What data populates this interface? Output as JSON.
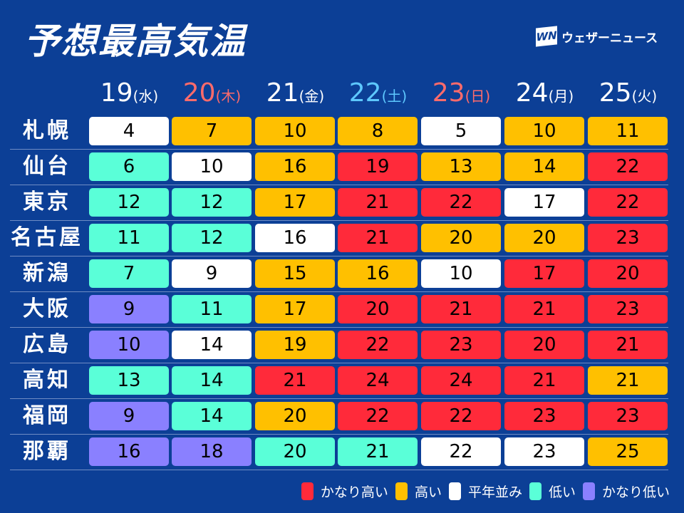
{
  "title": "予想最高気温",
  "logo": {
    "mark": "WN",
    "text": "ウェザーニュース"
  },
  "colors": {
    "very_high": "#ff2a3a",
    "high": "#ffc000",
    "normal": "#ffffff",
    "low": "#5affd8",
    "very_low": "#8a80ff",
    "background": "#0c3f96"
  },
  "days": [
    {
      "date": "19",
      "weekday": "(水)",
      "color": "#ffffff"
    },
    {
      "date": "20",
      "weekday": "(木)",
      "color": "#ff6b6b"
    },
    {
      "date": "21",
      "weekday": "(金)",
      "color": "#ffffff"
    },
    {
      "date": "22",
      "weekday": "(土)",
      "color": "#5ec8ff"
    },
    {
      "date": "23",
      "weekday": "(日)",
      "color": "#ff6b6b"
    },
    {
      "date": "24",
      "weekday": "(月)",
      "color": "#ffffff"
    },
    {
      "date": "25",
      "weekday": "(火)",
      "color": "#ffffff"
    }
  ],
  "rows": [
    {
      "city": "札幌",
      "temps": [
        "4",
        "7",
        "10",
        "8",
        "5",
        "10",
        "11"
      ],
      "levels": [
        "normal",
        "high",
        "high",
        "high",
        "normal",
        "high",
        "high"
      ]
    },
    {
      "city": "仙台",
      "temps": [
        "6",
        "10",
        "16",
        "19",
        "13",
        "14",
        "22"
      ],
      "levels": [
        "low",
        "normal",
        "high",
        "very_high",
        "high",
        "high",
        "very_high"
      ]
    },
    {
      "city": "東京",
      "temps": [
        "12",
        "12",
        "17",
        "21",
        "22",
        "17",
        "22"
      ],
      "levels": [
        "low",
        "low",
        "high",
        "very_high",
        "very_high",
        "normal",
        "very_high"
      ]
    },
    {
      "city": "名古屋",
      "temps": [
        "11",
        "12",
        "16",
        "21",
        "20",
        "20",
        "23"
      ],
      "levels": [
        "low",
        "low",
        "normal",
        "very_high",
        "high",
        "high",
        "very_high"
      ]
    },
    {
      "city": "新潟",
      "temps": [
        "7",
        "9",
        "15",
        "16",
        "10",
        "17",
        "20"
      ],
      "levels": [
        "low",
        "normal",
        "high",
        "high",
        "normal",
        "very_high",
        "very_high"
      ]
    },
    {
      "city": "大阪",
      "temps": [
        "9",
        "11",
        "17",
        "20",
        "21",
        "21",
        "23"
      ],
      "levels": [
        "very_low",
        "low",
        "high",
        "very_high",
        "very_high",
        "very_high",
        "very_high"
      ]
    },
    {
      "city": "広島",
      "temps": [
        "10",
        "14",
        "19",
        "22",
        "23",
        "20",
        "21"
      ],
      "levels": [
        "very_low",
        "normal",
        "high",
        "very_high",
        "very_high",
        "very_high",
        "very_high"
      ]
    },
    {
      "city": "高知",
      "temps": [
        "13",
        "14",
        "21",
        "24",
        "24",
        "21",
        "21"
      ],
      "levels": [
        "low",
        "low",
        "very_high",
        "very_high",
        "very_high",
        "very_high",
        "high"
      ]
    },
    {
      "city": "福岡",
      "temps": [
        "9",
        "14",
        "20",
        "22",
        "22",
        "23",
        "23"
      ],
      "levels": [
        "very_low",
        "low",
        "high",
        "very_high",
        "very_high",
        "very_high",
        "very_high"
      ]
    },
    {
      "city": "那覇",
      "temps": [
        "16",
        "18",
        "20",
        "21",
        "22",
        "23",
        "25"
      ],
      "levels": [
        "very_low",
        "very_low",
        "low",
        "low",
        "normal",
        "normal",
        "high"
      ]
    }
  ],
  "legend": [
    {
      "label": "かなり高い",
      "level": "very_high"
    },
    {
      "label": "高い",
      "level": "high"
    },
    {
      "label": "平年並み",
      "level": "normal"
    },
    {
      "label": "低い",
      "level": "low"
    },
    {
      "label": "かなり低い",
      "level": "very_low"
    }
  ]
}
